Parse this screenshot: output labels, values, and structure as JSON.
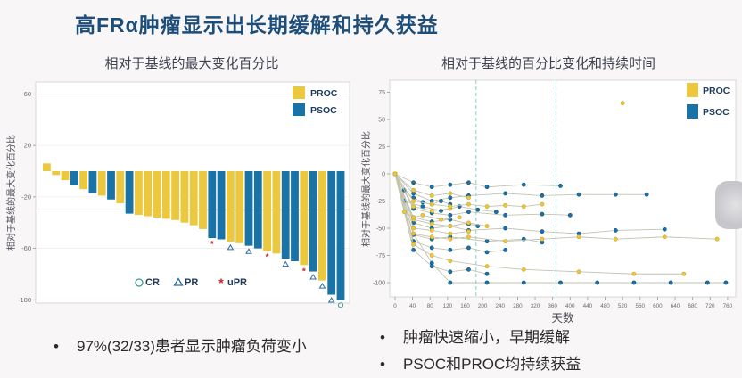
{
  "title": "高FRα肿瘤显示出长期缓解和持久获益",
  "bullets_left": [
    "97%(32/33)患者显示肿瘤负荷变小"
  ],
  "bullets_right": [
    "肿瘤快速缩小，早期缓解",
    "PSOC和PROC均持续获益"
  ],
  "colors": {
    "proc": "#ecc83e",
    "proc_edge": "#c9a51f",
    "psoc": "#1a73a7",
    "psoc_edge": "#0d4f73",
    "title_text": "#1d4e7a",
    "trajectory_line": "#c2c4b0",
    "dashed_vline": "#8fd3d3",
    "reference_line": "#c9c9c9",
    "cr_marker": "#3a9b8f",
    "pr_marker": "#2b6ca3",
    "upr_marker": "#cc2222"
  },
  "chart_data": [
    {
      "type": "bar",
      "title": "相对于基线的最大变化百分比",
      "ylabel": "相对于基线的最大变化百分比",
      "ylim": [
        -100,
        60
      ],
      "yticks": [
        60,
        20,
        -20,
        -60,
        -100
      ],
      "reference_line": -30,
      "grid": "horizontal-light",
      "legend_position": "top-right",
      "legend": [
        {
          "label": "PROC",
          "color_key": "proc"
        },
        {
          "label": "PSOC",
          "color_key": "psoc"
        }
      ],
      "response_legend": [
        {
          "symbol": "circle",
          "label": "CR"
        },
        {
          "symbol": "triangle",
          "label": "PR"
        },
        {
          "symbol": "asterisk",
          "label": "uPR"
        }
      ],
      "bars": [
        {
          "value": 6,
          "group": "PROC"
        },
        {
          "value": -3,
          "group": "PROC"
        },
        {
          "value": -7,
          "group": "PROC"
        },
        {
          "value": -11,
          "group": "PSOC"
        },
        {
          "value": -14,
          "group": "PROC"
        },
        {
          "value": -17,
          "group": "PSOC"
        },
        {
          "value": -19,
          "group": "PROC"
        },
        {
          "value": -22,
          "group": "PSOC"
        },
        {
          "value": -25,
          "group": "PROC"
        },
        {
          "value": -33,
          "group": "PSOC"
        },
        {
          "value": -34,
          "group": "PROC"
        },
        {
          "value": -35,
          "group": "PROC"
        },
        {
          "value": -36,
          "group": "PROC"
        },
        {
          "value": -37,
          "group": "PROC"
        },
        {
          "value": -38,
          "group": "PROC"
        },
        {
          "value": -40,
          "group": "PROC"
        },
        {
          "value": -42,
          "group": "PROC"
        },
        {
          "value": -45,
          "group": "PROC"
        },
        {
          "value": -52,
          "group": "PSOC",
          "response": "uPR"
        },
        {
          "value": -53,
          "group": "PSOC"
        },
        {
          "value": -55,
          "group": "PROC",
          "response": "PR"
        },
        {
          "value": -56,
          "group": "PROC"
        },
        {
          "value": -58,
          "group": "PSOC",
          "response": "PR"
        },
        {
          "value": -60,
          "group": "PSOC"
        },
        {
          "value": -62,
          "group": "PROC",
          "response": "uPR"
        },
        {
          "value": -64,
          "group": "PROC"
        },
        {
          "value": -68,
          "group": "PSOC",
          "response": "PR"
        },
        {
          "value": -70,
          "group": "PSOC"
        },
        {
          "value": -73,
          "group": "PROC",
          "response": "uPR"
        },
        {
          "value": -78,
          "group": "PSOC",
          "response": "PR"
        },
        {
          "value": -85,
          "group": "PROC",
          "response": "PR"
        },
        {
          "value": -96,
          "group": "PSOC",
          "response": "PR"
        },
        {
          "value": -100,
          "group": "PSOC",
          "response": "CR"
        }
      ]
    },
    {
      "type": "line",
      "title": "相对于基线的百分比变化和持续时间",
      "xlabel": "天数",
      "ylabel": "相对于基线的最大变化百分比",
      "xlim": [
        0,
        760
      ],
      "ylim": [
        -100,
        75
      ],
      "xticks": [
        0,
        40,
        80,
        120,
        160,
        200,
        240,
        280,
        320,
        360,
        400,
        440,
        480,
        520,
        560,
        600,
        640,
        680,
        720,
        760
      ],
      "yticks": [
        75,
        50,
        25,
        0,
        -25,
        -50,
        -75,
        -100
      ],
      "dashed_vlines": [
        185,
        368
      ],
      "grid": "off",
      "legend_position": "top-right",
      "legend": [
        {
          "label": "PROC",
          "color_key": "proc"
        },
        {
          "label": "PSOC",
          "color_key": "psoc"
        }
      ],
      "series": [
        {
          "group": "PSOC",
          "points": [
            [
              0,
              0
            ],
            [
              42,
              -55
            ],
            [
              84,
              -82
            ],
            [
              126,
              -100
            ],
            [
              210,
              -100
            ],
            [
              294,
              -100
            ],
            [
              378,
              -100
            ],
            [
              462,
              -100
            ],
            [
              546,
              -100
            ],
            [
              630,
              -100
            ],
            [
              714,
              -100
            ],
            [
              756,
              -100
            ]
          ]
        },
        {
          "group": "PSOC",
          "points": [
            [
              0,
              0
            ],
            [
              42,
              -8
            ],
            [
              84,
              -12
            ],
            [
              126,
              -10
            ],
            [
              168,
              -8
            ],
            [
              210,
              -12
            ],
            [
              294,
              -10
            ],
            [
              378,
              -11
            ]
          ]
        },
        {
          "group": "PSOC",
          "points": [
            [
              0,
              0
            ],
            [
              42,
              -18
            ],
            [
              84,
              -25
            ],
            [
              126,
              -22
            ],
            [
              168,
              -20
            ],
            [
              252,
              -18
            ],
            [
              336,
              -20
            ],
            [
              420,
              -19
            ],
            [
              504,
              -19
            ],
            [
              575,
              -19
            ]
          ]
        },
        {
          "group": "PSOC",
          "points": [
            [
              0,
              0
            ],
            [
              42,
              -32
            ],
            [
              84,
              -36
            ],
            [
              126,
              -38
            ],
            [
              168,
              -35
            ],
            [
              252,
              -38
            ],
            [
              336,
              -37
            ],
            [
              400,
              -38
            ]
          ]
        },
        {
          "group": "PSOC",
          "points": [
            [
              0,
              0
            ],
            [
              42,
              -45
            ],
            [
              84,
              -50
            ],
            [
              126,
              -48
            ],
            [
              168,
              -52
            ],
            [
              252,
              -50
            ],
            [
              336,
              -53
            ],
            [
              420,
              -55
            ],
            [
              504,
              -52
            ],
            [
              616,
              -51
            ]
          ]
        },
        {
          "group": "PSOC",
          "points": [
            [
              0,
              0
            ],
            [
              42,
              -56
            ],
            [
              84,
              -60
            ],
            [
              126,
              -58
            ],
            [
              210,
              -62
            ],
            [
              294,
              -60
            ],
            [
              336,
              -63
            ]
          ]
        },
        {
          "group": "PSOC",
          "points": [
            [
              0,
              0
            ],
            [
              21,
              -25
            ],
            [
              63,
              -30
            ],
            [
              105,
              -34
            ],
            [
              147,
              -30
            ],
            [
              189,
              -33
            ],
            [
              231,
              -35
            ]
          ]
        },
        {
          "group": "PSOC",
          "points": [
            [
              0,
              0
            ],
            [
              42,
              -62
            ],
            [
              84,
              -68
            ],
            [
              126,
              -70
            ],
            [
              168,
              -68
            ],
            [
              210,
              -72
            ],
            [
              252,
              -70
            ]
          ]
        },
        {
          "group": "PSOC",
          "points": [
            [
              0,
              0
            ],
            [
              42,
              -40
            ],
            [
              84,
              -44
            ],
            [
              126,
              -42
            ],
            [
              168,
              -46
            ],
            [
              189,
              -48
            ]
          ]
        },
        {
          "group": "PSOC",
          "points": [
            [
              0,
              0
            ],
            [
              21,
              -15
            ],
            [
              42,
              -22
            ],
            [
              63,
              -26
            ],
            [
              84,
              -28
            ],
            [
              105,
              -25
            ],
            [
              126,
              -28
            ]
          ]
        },
        {
          "group": "PSOC",
          "points": [
            [
              0,
              0
            ],
            [
              42,
              -70
            ],
            [
              84,
              -85
            ],
            [
              126,
              -90
            ],
            [
              168,
              -88
            ],
            [
              210,
              -92
            ]
          ]
        },
        {
          "group": "PROC",
          "points": [
            [
              0,
              0
            ],
            [
              42,
              -15
            ],
            [
              84,
              -20
            ],
            [
              126,
              -18
            ],
            [
              168,
              -22
            ]
          ]
        },
        {
          "group": "PROC",
          "points": [
            [
              0,
              0
            ],
            [
              42,
              -30
            ],
            [
              84,
              -34
            ],
            [
              126,
              -32
            ]
          ]
        },
        {
          "group": "PROC",
          "points": [
            [
              0,
              0
            ],
            [
              42,
              -42
            ],
            [
              84,
              -46
            ],
            [
              126,
              -48
            ],
            [
              168,
              -45
            ],
            [
              210,
              -48
            ]
          ]
        },
        {
          "group": "PROC",
          "points": [
            [
              0,
              0
            ],
            [
              42,
              -25
            ],
            [
              84,
              -28
            ],
            [
              126,
              -30
            ],
            [
              168,
              -28
            ],
            [
              210,
              -30
            ],
            [
              252,
              -29
            ],
            [
              294,
              -30
            ],
            [
              336,
              -28
            ]
          ]
        },
        {
          "group": "PROC",
          "points": [
            [
              0,
              0
            ],
            [
              42,
              -55
            ],
            [
              84,
              -58
            ],
            [
              126,
              -60
            ],
            [
              168,
              -58
            ],
            [
              252,
              -62
            ],
            [
              336,
              -60
            ],
            [
              420,
              -58
            ],
            [
              504,
              -60
            ],
            [
              616,
              -58
            ],
            [
              736,
              -60
            ]
          ]
        },
        {
          "group": "PROC",
          "points": [
            [
              0,
              0
            ],
            [
              42,
              -65
            ],
            [
              84,
              -75
            ],
            [
              126,
              -80
            ],
            [
              210,
              -85
            ],
            [
              294,
              -88
            ],
            [
              420,
              -90
            ],
            [
              546,
              -92
            ],
            [
              660,
              -92
            ]
          ]
        },
        {
          "group": "PROC",
          "points": [
            [
              0,
              0
            ],
            [
              21,
              -35
            ],
            [
              42,
              -40
            ],
            [
              63,
              -38
            ],
            [
              105,
              -42
            ],
            [
              147,
              -40
            ]
          ]
        },
        {
          "group": "PROC",
          "points": [
            [
              0,
              0
            ],
            [
              42,
              -50
            ],
            [
              84,
              -52
            ],
            [
              126,
              -55
            ],
            [
              168,
              -53
            ]
          ]
        },
        {
          "group": "PROC",
          "points": [
            [
              520,
              65
            ]
          ]
        }
      ]
    }
  ]
}
